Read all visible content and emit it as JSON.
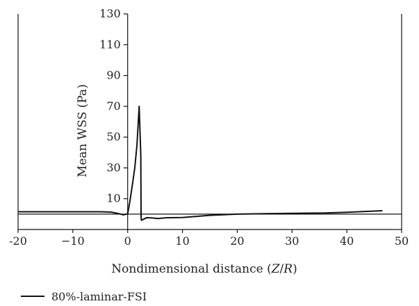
{
  "chart_data": {
    "type": "line",
    "title": "",
    "xlabel": "Nondimensional distance (Z/R)",
    "xlabel_parts": {
      "prefix": "Nondimensional distance (",
      "var1": "Z",
      "slash": "/",
      "var2": "R",
      "suffix": ")"
    },
    "ylabel": "Mean WSS (Pa)",
    "xlim": [
      -20,
      50
    ],
    "ylim": [
      -10,
      130
    ],
    "x_ticks": [
      -20,
      -10,
      0,
      10,
      20,
      30,
      40,
      50
    ],
    "x_tick_labels": [
      "-20",
      "−10",
      "0",
      "10",
      "20",
      "30",
      "40",
      "50"
    ],
    "y_ticks": [
      10,
      30,
      50,
      70,
      90,
      110,
      130
    ],
    "y_tick_labels": [
      "10",
      "30",
      "50",
      "70",
      "90",
      "110",
      "130"
    ],
    "grid": false,
    "legend": "bottom-left",
    "series": [
      {
        "name": "80%-laminar-FSI",
        "color": "#111111",
        "points": [
          [
            -20,
            1.5
          ],
          [
            -5,
            1.5
          ],
          [
            -3,
            1.3
          ],
          [
            -1.5,
            0.2
          ],
          [
            -0.8,
            -0.5
          ],
          [
            0,
            0.2
          ],
          [
            0.4,
            8
          ],
          [
            0.9,
            20
          ],
          [
            1.3,
            30
          ],
          [
            1.7,
            45
          ],
          [
            2.1,
            70
          ],
          [
            2.4,
            38
          ],
          [
            2.45,
            -2
          ],
          [
            2.5,
            -4
          ],
          [
            3.5,
            -2.3
          ],
          [
            4.5,
            -2.5
          ],
          [
            5.5,
            -2.9
          ],
          [
            7,
            -2.4
          ],
          [
            10,
            -2.2
          ],
          [
            15,
            -0.8
          ],
          [
            20,
            0
          ],
          [
            30,
            0.5
          ],
          [
            36,
            0.7
          ],
          [
            40,
            1.2
          ],
          [
            46.5,
            2.2
          ]
        ]
      }
    ]
  }
}
